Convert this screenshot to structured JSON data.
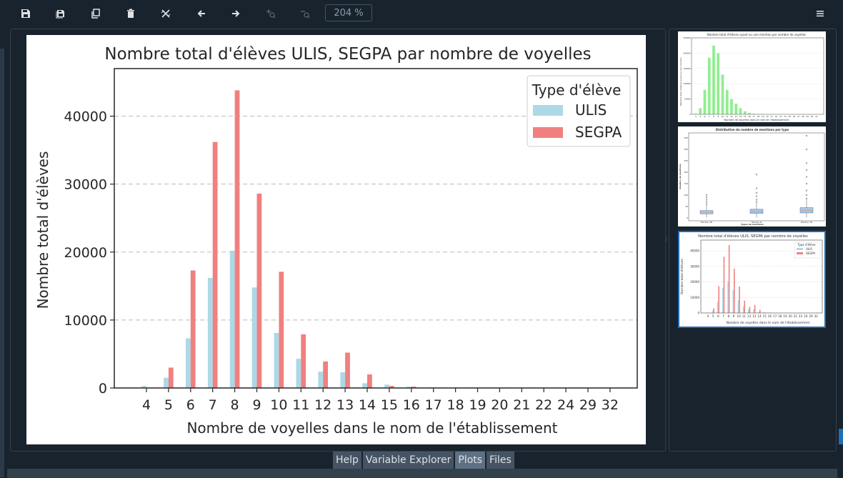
{
  "toolbar": {
    "buttons": [
      {
        "name": "save-icon-button",
        "icon": "save-icon"
      },
      {
        "name": "save-all-icon-button",
        "icon": "save-all-icon"
      },
      {
        "name": "copy-icon-button",
        "icon": "copy-icon"
      },
      {
        "name": "delete-icon-button",
        "icon": "trash-icon"
      },
      {
        "name": "delete-all-icon-button",
        "icon": "delete-all-icon"
      },
      {
        "name": "previous-button",
        "icon": "arrow-left-icon"
      },
      {
        "name": "next-button",
        "icon": "arrow-right-icon"
      },
      {
        "name": "zoom-in-button",
        "icon": "zoom-in-icon"
      },
      {
        "name": "zoom-out-button",
        "icon": "zoom-out-icon"
      }
    ],
    "zoom": "204 %",
    "menu_icon": "hamburger-icon"
  },
  "tabs": [
    {
      "label": "Help",
      "active": false
    },
    {
      "label": "Variable Explorer",
      "active": false
    },
    {
      "label": "Plots",
      "active": true
    },
    {
      "label": "Files",
      "active": false
    }
  ],
  "colors": {
    "ulis": "#add8e6",
    "segpa": "#f08080",
    "green": "#90ee90",
    "accent": "#1f6fb5"
  },
  "chart_data": {
    "type": "bar",
    "title": "Nombre total d'élèves ULIS, SEGPA par nombre de voyelles",
    "xlabel": "Nombre de voyelles dans le nom de l'établissement",
    "ylabel": "Nombre total d'élèves",
    "legend_title": "Type d'élève",
    "legend_position": "top-right",
    "grid": "horizontal dashed",
    "ylim": [
      0,
      47000
    ],
    "yticks": [
      0,
      10000,
      20000,
      30000,
      40000
    ],
    "categories": [
      "4",
      "5",
      "6",
      "7",
      "8",
      "9",
      "10",
      "11",
      "12",
      "13",
      "14",
      "15",
      "16",
      "17",
      "18",
      "19",
      "20",
      "21",
      "22",
      "24",
      "29",
      "32"
    ],
    "series": [
      {
        "name": "ULIS",
        "values": [
          300,
          1500,
          7300,
          16200,
          20200,
          14800,
          8100,
          4300,
          2400,
          2300,
          700,
          500,
          200,
          100,
          0,
          0,
          0,
          0,
          0,
          0,
          0,
          0
        ]
      },
      {
        "name": "SEGPA",
        "values": [
          0,
          3000,
          17300,
          36200,
          43800,
          28600,
          17100,
          7900,
          3900,
          5200,
          2000,
          300,
          200,
          0,
          0,
          0,
          0,
          0,
          0,
          0,
          0,
          0
        ]
      }
    ]
  },
  "thumbnails": [
    {
      "title": "Nombre total d'élèves ayant eu une mention par nombre de voyelles",
      "ylabel": "Nombre total d'élèves ayant eu une mention",
      "xlabel": "Nombre de voyelles dans le nom de l'établissement",
      "chart_data": {
        "type": "bar",
        "categories": [
          "4",
          "5",
          "6",
          "7",
          "8",
          "9",
          "10",
          "11",
          "12",
          "13",
          "14",
          "15",
          "16",
          "17",
          "18",
          "19",
          "20",
          "21",
          "22",
          "23",
          "24",
          "25",
          "26",
          "27",
          "28",
          "29",
          "30",
          "31"
        ],
        "values": [
          2000,
          20000,
          80000,
          185000,
          225000,
          200000,
          130000,
          80000,
          50000,
          35000,
          20000,
          10000,
          5000,
          2000,
          1000,
          500,
          300,
          200,
          100,
          50,
          30,
          20,
          10,
          5,
          5,
          5,
          2,
          2
        ],
        "ylim": [
          0,
          250000
        ],
        "yticks": [
          0,
          50000,
          100000,
          150000,
          200000,
          250000
        ]
      }
    },
    {
      "title": "Distribution du nombre de mentions par type",
      "ylabel": "Nombre de mentions",
      "xlabel": "Types de mentions",
      "chart_data": {
        "type": "box",
        "categories": [
          "Mention AB",
          "Mention B",
          "Mention TB"
        ],
        "ylim": [
          0,
          360
        ],
        "yticks": [
          0,
          50,
          100,
          150,
          200,
          250,
          300,
          350
        ]
      }
    },
    {
      "title": "Nombre total d'élèves ULIS, SEGPA par nombre de voyelles",
      "ylabel": "Nombre total d'élèves",
      "xlabel": "Nombre de voyelles dans le nom de l'établissement",
      "legend_title": "Type d'élève",
      "selected": true
    }
  ]
}
